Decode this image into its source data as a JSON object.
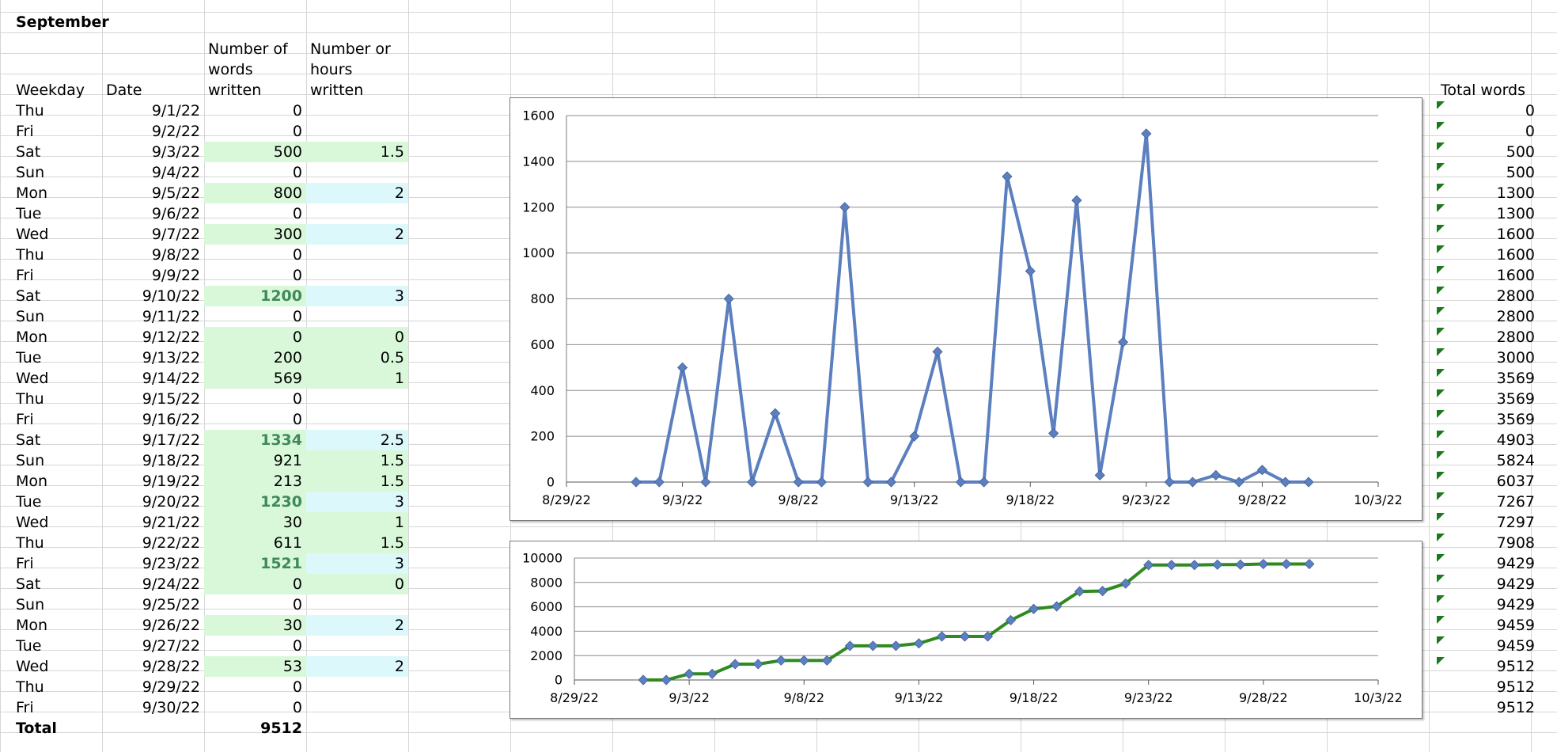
{
  "sheet": {
    "month_title": "September",
    "headers": {
      "weekday": "Weekday",
      "date": "Date",
      "words": [
        "Number of",
        "words",
        "written"
      ],
      "hours": [
        "Number or",
        "hours",
        "written"
      ],
      "total_words": "Total words"
    },
    "rows": [
      {
        "weekday": "Thu",
        "date": "9/1/22",
        "words": "0",
        "hours": "",
        "total": "0"
      },
      {
        "weekday": "Fri",
        "date": "9/2/22",
        "words": "0",
        "hours": "",
        "total": "0"
      },
      {
        "weekday": "Sat",
        "date": "9/3/22",
        "words": "500",
        "hours": "1.5",
        "total": "500"
      },
      {
        "weekday": "Sun",
        "date": "9/4/22",
        "words": "0",
        "hours": "",
        "total": "500"
      },
      {
        "weekday": "Mon",
        "date": "9/5/22",
        "words": "800",
        "hours": "2",
        "total": "1300"
      },
      {
        "weekday": "Tue",
        "date": "9/6/22",
        "words": "0",
        "hours": "",
        "total": "1300"
      },
      {
        "weekday": "Wed",
        "date": "9/7/22",
        "words": "300",
        "hours": "2",
        "total": "1600"
      },
      {
        "weekday": "Thu",
        "date": "9/8/22",
        "words": "0",
        "hours": "",
        "total": "1600"
      },
      {
        "weekday": "Fri",
        "date": "9/9/22",
        "words": "0",
        "hours": "",
        "total": "1600"
      },
      {
        "weekday": "Sat",
        "date": "9/10/22",
        "words": "1200",
        "hours": "3",
        "total": "2800"
      },
      {
        "weekday": "Sun",
        "date": "9/11/22",
        "words": "0",
        "hours": "",
        "total": "2800"
      },
      {
        "weekday": "Mon",
        "date": "9/12/22",
        "words": "0",
        "hours": "0",
        "total": "2800"
      },
      {
        "weekday": "Tue",
        "date": "9/13/22",
        "words": "200",
        "hours": "0.5",
        "total": "3000"
      },
      {
        "weekday": "Wed",
        "date": "9/14/22",
        "words": "569",
        "hours": "1",
        "total": "3569"
      },
      {
        "weekday": "Thu",
        "date": "9/15/22",
        "words": "0",
        "hours": "",
        "total": "3569"
      },
      {
        "weekday": "Fri",
        "date": "9/16/22",
        "words": "0",
        "hours": "",
        "total": "3569"
      },
      {
        "weekday": "Sat",
        "date": "9/17/22",
        "words": "1334",
        "hours": "2.5",
        "total": "4903"
      },
      {
        "weekday": "Sun",
        "date": "9/18/22",
        "words": "921",
        "hours": "1.5",
        "total": "5824"
      },
      {
        "weekday": "Mon",
        "date": "9/19/22",
        "words": "213",
        "hours": "1.5",
        "total": "6037"
      },
      {
        "weekday": "Tue",
        "date": "9/20/22",
        "words": "1230",
        "hours": "3",
        "total": "7267"
      },
      {
        "weekday": "Wed",
        "date": "9/21/22",
        "words": "30",
        "hours": "1",
        "total": "7297"
      },
      {
        "weekday": "Thu",
        "date": "9/22/22",
        "words": "611",
        "hours": "1.5",
        "total": "7908"
      },
      {
        "weekday": "Fri",
        "date": "9/23/22",
        "words": "1521",
        "hours": "3",
        "total": "9429"
      },
      {
        "weekday": "Sat",
        "date": "9/24/22",
        "words": "0",
        "hours": "0",
        "total": "9429"
      },
      {
        "weekday": "Sun",
        "date": "9/25/22",
        "words": "0",
        "hours": "",
        "total": "9429"
      },
      {
        "weekday": "Mon",
        "date": "9/26/22",
        "words": "30",
        "hours": "2",
        "total": "9459"
      },
      {
        "weekday": "Tue",
        "date": "9/27/22",
        "words": "0",
        "hours": "",
        "total": "9459"
      },
      {
        "weekday": "Wed",
        "date": "9/28/22",
        "words": "53",
        "hours": "2",
        "total": "9512"
      },
      {
        "weekday": "Thu",
        "date": "9/29/22",
        "words": "0",
        "hours": "",
        "total": "9512"
      },
      {
        "weekday": "Fri",
        "date": "9/30/22",
        "words": "0",
        "hours": "",
        "total": "9512"
      }
    ],
    "total_label": "Total",
    "total_value": "9512",
    "colors": {
      "words_highlight": "#d9f7d9",
      "hours_highlight": "#dcf8fa",
      "big_value_text": "#3e8a5b"
    }
  },
  "chart_data": [
    {
      "type": "line",
      "x": [
        "9/1/22",
        "9/2/22",
        "9/3/22",
        "9/4/22",
        "9/5/22",
        "9/6/22",
        "9/7/22",
        "9/8/22",
        "9/9/22",
        "9/10/22",
        "9/11/22",
        "9/12/22",
        "9/13/22",
        "9/14/22",
        "9/15/22",
        "9/16/22",
        "9/17/22",
        "9/18/22",
        "9/19/22",
        "9/20/22",
        "9/21/22",
        "9/22/22",
        "9/23/22",
        "9/24/22",
        "9/25/22",
        "9/26/22",
        "9/27/22",
        "9/28/22",
        "9/29/22",
        "9/30/22"
      ],
      "series": [
        {
          "values": [
            0,
            0,
            500,
            0,
            800,
            0,
            300,
            0,
            0,
            1200,
            0,
            0,
            200,
            569,
            0,
            0,
            1334,
            921,
            213,
            1230,
            30,
            611,
            1521,
            0,
            0,
            30,
            0,
            53,
            0,
            0
          ],
          "color": "#5b7fbf",
          "marker": "diamond"
        }
      ],
      "ylim": [
        0,
        1600
      ],
      "yticks": [
        "0",
        "200",
        "400",
        "600",
        "800",
        "1000",
        "1200",
        "1400",
        "1600"
      ],
      "xticks": [
        "8/29/22",
        "9/3/22",
        "9/8/22",
        "9/13/22",
        "9/18/22",
        "9/23/22",
        "9/28/22",
        "10/3/22"
      ],
      "xlim": [
        "8/29/22",
        "10/3/22"
      ],
      "grid": true,
      "legend": "none"
    },
    {
      "type": "line",
      "x": [
        "9/1/22",
        "9/2/22",
        "9/3/22",
        "9/4/22",
        "9/5/22",
        "9/6/22",
        "9/7/22",
        "9/8/22",
        "9/9/22",
        "9/10/22",
        "9/11/22",
        "9/12/22",
        "9/13/22",
        "9/14/22",
        "9/15/22",
        "9/16/22",
        "9/17/22",
        "9/18/22",
        "9/19/22",
        "9/20/22",
        "9/21/22",
        "9/22/22",
        "9/23/22",
        "9/24/22",
        "9/25/22",
        "9/26/22",
        "9/27/22",
        "9/28/22",
        "9/29/22",
        "9/30/22"
      ],
      "series": [
        {
          "values": [
            0,
            0,
            500,
            500,
            1300,
            1300,
            1600,
            1600,
            1600,
            2800,
            2800,
            2800,
            3000,
            3569,
            3569,
            3569,
            4903,
            5824,
            6037,
            7267,
            7297,
            7908,
            9429,
            9429,
            9429,
            9459,
            9459,
            9512,
            9512,
            9512
          ],
          "color": "#2e8b1e",
          "marker": "diamond",
          "marker_color": "#5b7fbf"
        }
      ],
      "ylim": [
        0,
        10000
      ],
      "yticks": [
        "0",
        "2000",
        "4000",
        "6000",
        "8000",
        "10000"
      ],
      "xticks": [
        "8/29/22",
        "9/3/22",
        "9/8/22",
        "9/13/22",
        "9/18/22",
        "9/23/22",
        "9/28/22",
        "10/3/22"
      ],
      "xlim": [
        "8/29/22",
        "10/3/22"
      ],
      "grid": true,
      "legend": "none"
    }
  ]
}
